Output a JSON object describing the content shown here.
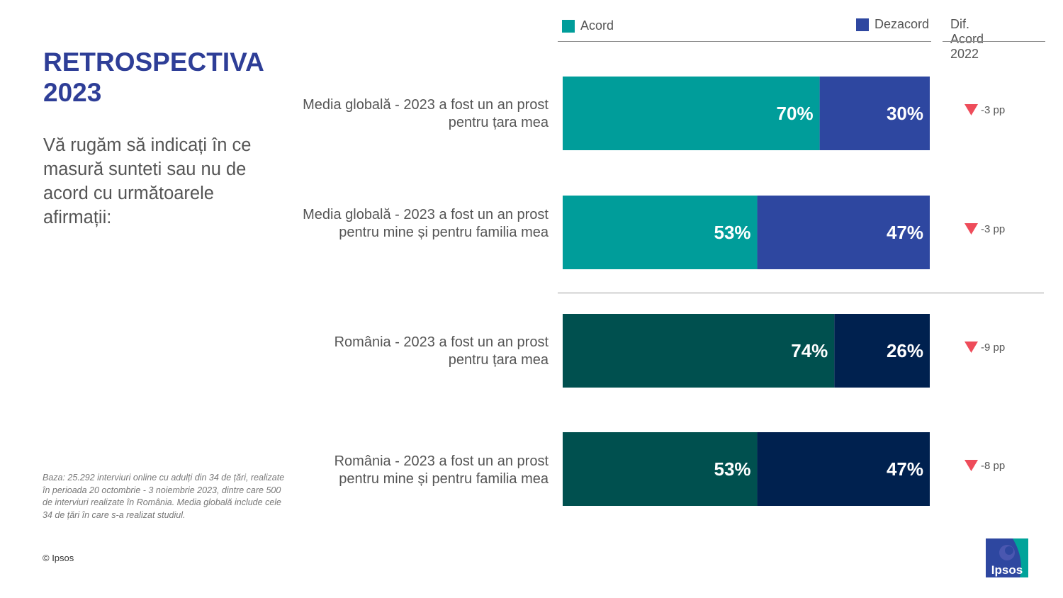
{
  "header": {
    "title_line1": "RETROSPECTIVA",
    "title_line2": "2023",
    "subtitle": "Vă rugăm să indicați în ce masură sunteti sau nu de acord cu următoarele afirmații:"
  },
  "footer": {
    "base_note": "Baza: 25.292 interviuri online cu adulți din 34 de țări, realizate în perioada 20 octombrie - 3 noiembrie 2023, dintre care 500 de interviuri realizate în România. Media globală include cele 34 de țări în care s-a realizat studiul.",
    "copyright": "© Ipsos",
    "logo_text": "Ipsos"
  },
  "legend": {
    "acord": "Acord",
    "dezacord": "Dezacord",
    "diff_header": "Dif. Acord 2022"
  },
  "colors": {
    "title": "#2e3e97",
    "global_acord": "#009d9a",
    "global_dezacord": "#2e47a0",
    "romania_acord": "#00504f",
    "romania_dezacord": "#00214f",
    "down_arrow": "#ee4c5a"
  },
  "chart_data": {
    "type": "bar",
    "orientation": "horizontal",
    "stacked": true,
    "normalized": true,
    "categories": [
      "Media globală - 2023 a fost un an prost pentru țara mea",
      "Media globală - 2023 a fost un an prost pentru mine și pentru familia mea",
      "România - 2023 a fost un an prost pentru țara mea",
      "România - 2023 a fost un an prost pentru mine și pentru familia mea"
    ],
    "series": [
      {
        "name": "Acord",
        "values": [
          70,
          53,
          74,
          53
        ]
      },
      {
        "name": "Dezacord",
        "values": [
          30,
          47,
          26,
          47
        ]
      }
    ],
    "value_labels": {
      "acord": [
        "70%",
        "53%",
        "74%",
        "53%"
      ],
      "dezacord": [
        "30%",
        "47%",
        "26%",
        "47%"
      ]
    },
    "diff_acord_2022": [
      -3,
      -3,
      -9,
      -8
    ],
    "diff_labels": [
      "-3 pp",
      "-3 pp",
      "-9 pp",
      "-8 pp"
    ],
    "xlim": [
      0,
      100
    ]
  }
}
